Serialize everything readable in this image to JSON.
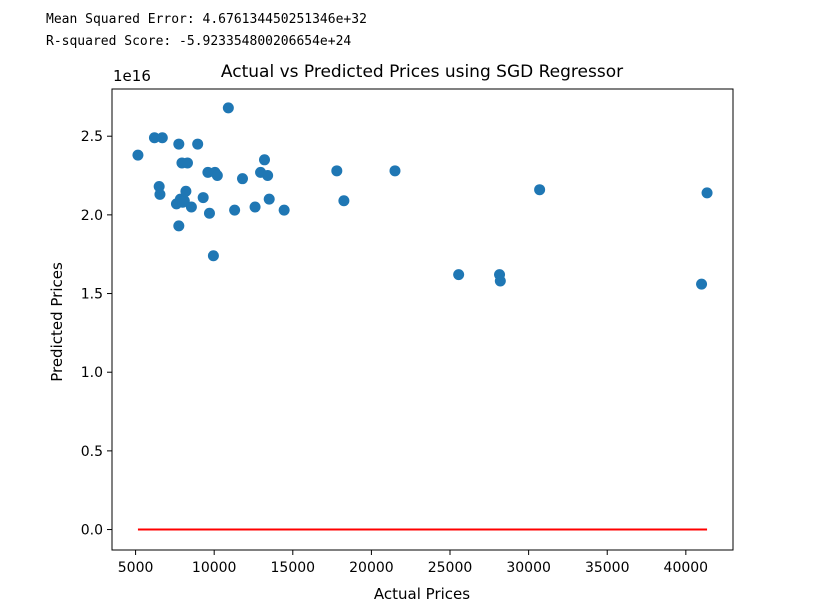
{
  "output": {
    "mse_line": "Mean Squared Error: 4.676134450251346e+32",
    "r2_line": "R-squared Score: -5.923354800206654e+24"
  },
  "chart_data": {
    "type": "scatter",
    "title": "Actual vs Predicted Prices using SGD Regressor",
    "xlabel": "Actual Prices",
    "ylabel": "Predicted Prices",
    "y_offset_label": "1e16",
    "xlim": [
      3500,
      43000
    ],
    "ylim": [
      -0.13,
      2.8
    ],
    "x_ticks": [
      5000,
      10000,
      15000,
      20000,
      25000,
      30000,
      35000,
      40000
    ],
    "x_tick_labels": [
      "5000",
      "10000",
      "15000",
      "20000",
      "25000",
      "30000",
      "35000",
      "40000"
    ],
    "y_ticks": [
      0.0,
      0.5,
      1.0,
      1.5,
      2.0,
      2.5
    ],
    "y_tick_labels": [
      "0.0",
      "0.5",
      "1.0",
      "1.5",
      "2.0",
      "2.5"
    ],
    "grid": false,
    "colors": {
      "points": "#1f77b4",
      "line": "#ff0000"
    },
    "scatter": {
      "x": [
        5150,
        6200,
        6700,
        6500,
        6550,
        7600,
        7750,
        7850,
        7750,
        7950,
        8100,
        8200,
        8300,
        8000,
        8550,
        8950,
        9300,
        9600,
        9700,
        9950,
        10050,
        10200,
        10900,
        11300,
        11800,
        12600,
        12950,
        13200,
        13400,
        13500,
        14450,
        17800,
        18250,
        21500,
        25550,
        28150,
        28200,
        30700,
        41000,
        41350
      ],
      "y": [
        2.38,
        2.49,
        2.49,
        2.18,
        2.13,
        2.07,
        2.45,
        2.1,
        1.93,
        2.33,
        2.09,
        2.15,
        2.33,
        2.08,
        2.05,
        2.45,
        2.11,
        2.27,
        2.01,
        1.74,
        2.27,
        2.25,
        2.68,
        2.03,
        2.23,
        2.05,
        2.27,
        2.35,
        2.25,
        2.1,
        2.03,
        2.28,
        2.09,
        2.28,
        1.62,
        1.62,
        1.58,
        2.16,
        1.56,
        2.14
      ]
    },
    "line": {
      "x": [
        5150,
        41350
      ],
      "y": [
        0.0,
        0.0
      ]
    }
  }
}
